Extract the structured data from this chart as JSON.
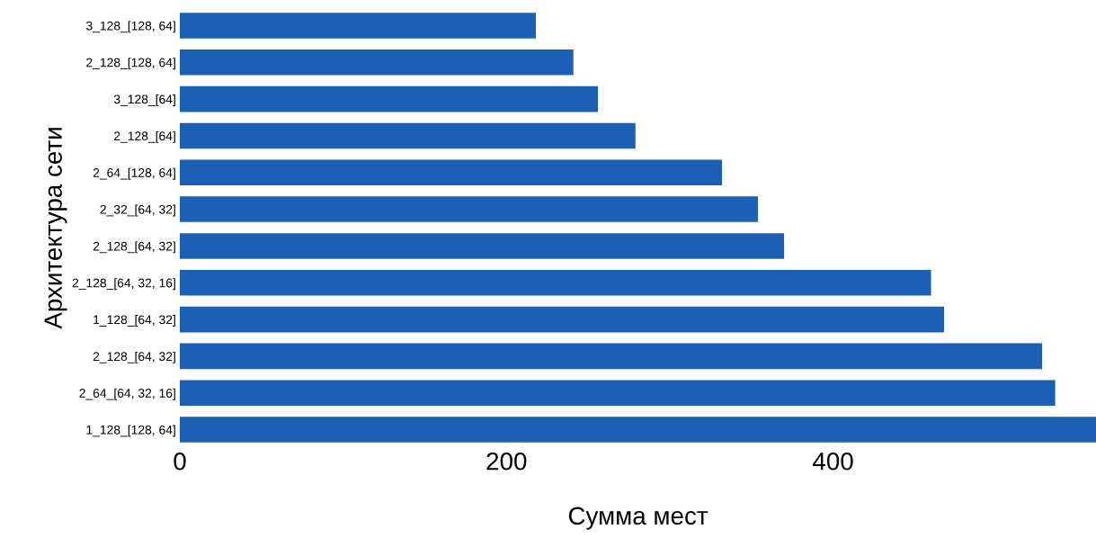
{
  "chart_data": {
    "type": "bar",
    "orientation": "horizontal",
    "xlabel": "Сумма мест",
    "ylabel": "Архитектура сети",
    "categories": [
      "3_128_[128, 64]",
      "2_128_[128, 64]",
      "3_128_[64]",
      "2_128_[64]",
      "2_64_[128, 64]",
      "2_32_[64, 32]",
      "2_128_[64, 32]",
      "2_128_[64, 32, 16]",
      "1_128_[64, 32]",
      "2_128_[64, 32]",
      "2_64_[64, 32, 16]",
      "1_128_[128, 64]"
    ],
    "values": [
      218,
      241,
      256,
      279,
      332,
      354,
      370,
      460,
      468,
      528,
      536,
      561
    ],
    "color": "#1c60b5",
    "xlim": [
      0,
      561
    ],
    "xticks": [
      0,
      200,
      400
    ],
    "grid": false
  }
}
